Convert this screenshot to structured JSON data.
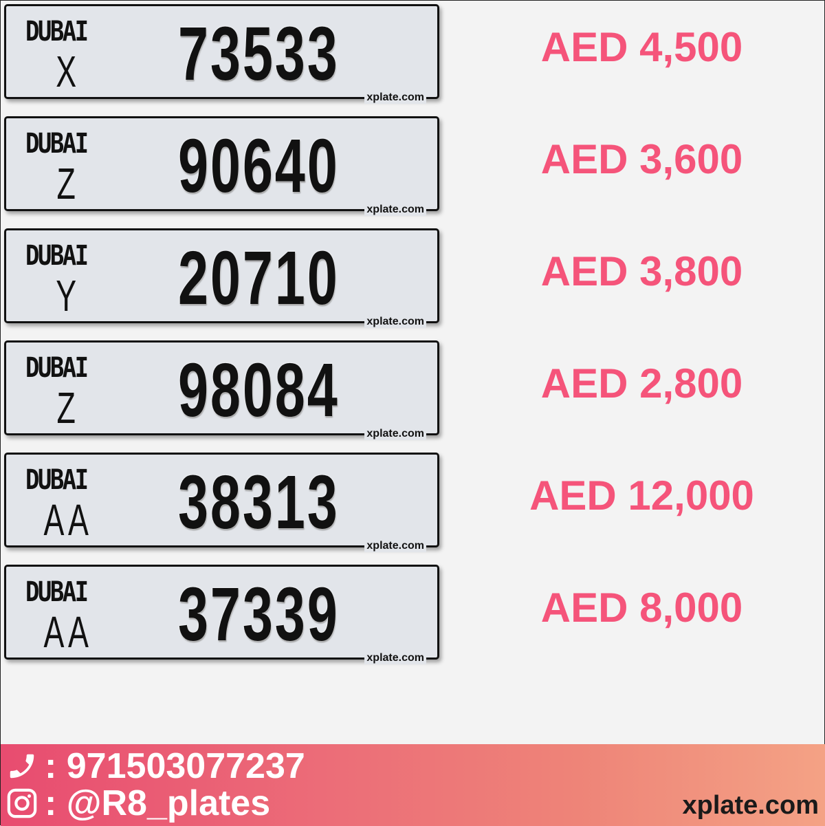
{
  "plates": [
    {
      "emirate": "DUBAI",
      "code": "X",
      "number": "73533",
      "watermark": "xplate.com",
      "price": "AED 4,500"
    },
    {
      "emirate": "DUBAI",
      "code": "Z",
      "number": "90640",
      "watermark": "xplate.com",
      "price": "AED 3,600"
    },
    {
      "emirate": "DUBAI",
      "code": "Y",
      "number": "20710",
      "watermark": "xplate.com",
      "price": "AED 3,800"
    },
    {
      "emirate": "DUBAI",
      "code": "Z",
      "number": "98084",
      "watermark": "xplate.com",
      "price": "AED 2,800"
    },
    {
      "emirate": "DUBAI",
      "code": "AA",
      "number": "38313",
      "watermark": "xplate.com",
      "price": "AED 12,000"
    },
    {
      "emirate": "DUBAI",
      "code": "AA",
      "number": "37339",
      "watermark": "xplate.com",
      "price": "AED 8,000"
    }
  ],
  "footer": {
    "phone": ": 971503077237",
    "instagram": ": @R8_plates",
    "site": "xplate.com",
    "phone_icon": "phone-icon",
    "instagram_icon": "instagram-icon"
  },
  "colors": {
    "price": "#f5547a",
    "footer_start": "#e84c70",
    "footer_end": "#f4a285"
  }
}
